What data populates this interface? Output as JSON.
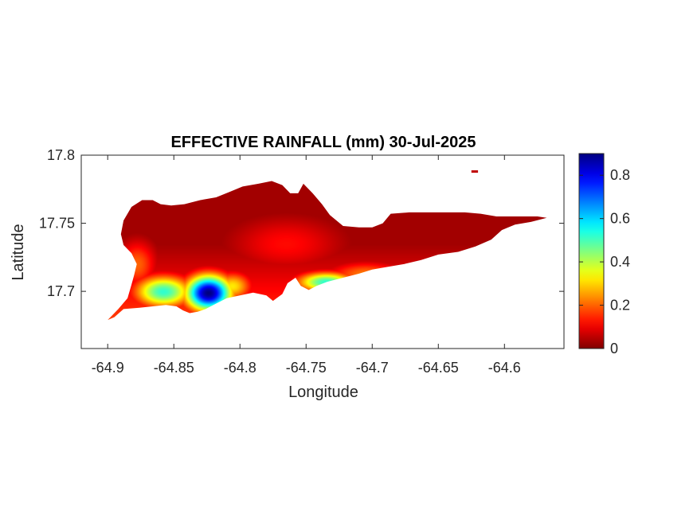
{
  "chart_data": {
    "type": "heatmap",
    "title": "EFFECTIVE RAINFALL (mm) 30-Jul-2025",
    "xlabel": "Longitude",
    "ylabel": "Latitude",
    "xlim": [
      -64.92,
      -64.555
    ],
    "ylim": [
      17.658,
      17.8
    ],
    "x_ticks": [
      -64.9,
      -64.85,
      -64.8,
      -64.75,
      -64.7,
      -64.65,
      -64.6
    ],
    "x_tick_labels": [
      "-64.9",
      "-64.85",
      "-64.8",
      "-64.75",
      "-64.7",
      "-64.65",
      "-64.6"
    ],
    "y_ticks": [
      17.7,
      17.75,
      17.8
    ],
    "y_tick_labels": [
      "17.7",
      "17.75",
      "17.8"
    ],
    "colormap": "jet-reversed",
    "colorbar": {
      "range": [
        0,
        0.9
      ],
      "ticks": [
        0,
        0.2,
        0.4,
        0.6,
        0.8
      ],
      "tick_labels": [
        "0",
        "0.2",
        "0.4",
        "0.6",
        "0.8"
      ],
      "placement": "right"
    },
    "grid": false,
    "island_outline_lonlat": [
      [
        -64.9,
        17.679
      ],
      [
        -64.892,
        17.687
      ],
      [
        -64.885,
        17.695
      ],
      [
        -64.882,
        17.705
      ],
      [
        -64.88,
        17.712
      ],
      [
        -64.878,
        17.72
      ],
      [
        -64.882,
        17.728
      ],
      [
        -64.888,
        17.734
      ],
      [
        -64.89,
        17.742
      ],
      [
        -64.888,
        17.752
      ],
      [
        -64.882,
        17.762
      ],
      [
        -64.874,
        17.767
      ],
      [
        -64.866,
        17.767
      ],
      [
        -64.86,
        17.764
      ],
      [
        -64.852,
        17.763
      ],
      [
        -64.842,
        17.764
      ],
      [
        -64.83,
        17.767
      ],
      [
        -64.818,
        17.769
      ],
      [
        -64.808,
        17.773
      ],
      [
        -64.798,
        17.777
      ],
      [
        -64.786,
        17.779
      ],
      [
        -64.776,
        17.781
      ],
      [
        -64.768,
        17.778
      ],
      [
        -64.762,
        17.772
      ],
      [
        -64.756,
        17.772
      ],
      [
        -64.752,
        17.779
      ],
      [
        -64.745,
        17.772
      ],
      [
        -64.738,
        17.764
      ],
      [
        -64.732,
        17.756
      ],
      [
        -64.722,
        17.748
      ],
      [
        -64.71,
        17.747
      ],
      [
        -64.7,
        17.747
      ],
      [
        -64.692,
        17.75
      ],
      [
        -64.686,
        17.757
      ],
      [
        -64.672,
        17.758
      ],
      [
        -64.658,
        17.758
      ],
      [
        -64.644,
        17.758
      ],
      [
        -64.63,
        17.758
      ],
      [
        -64.618,
        17.757
      ],
      [
        -64.606,
        17.755
      ],
      [
        -64.596,
        17.755
      ],
      [
        -64.586,
        17.755
      ],
      [
        -64.575,
        17.755
      ],
      [
        -64.568,
        17.754
      ],
      [
        -64.58,
        17.751
      ],
      [
        -64.592,
        17.749
      ],
      [
        -64.602,
        17.745
      ],
      [
        -64.61,
        17.738
      ],
      [
        -64.622,
        17.733
      ],
      [
        -64.635,
        17.729
      ],
      [
        -64.65,
        17.727
      ],
      [
        -64.663,
        17.723
      ],
      [
        -64.676,
        17.72
      ],
      [
        -64.688,
        17.718
      ],
      [
        -64.7,
        17.716
      ],
      [
        -64.71,
        17.713
      ],
      [
        -64.722,
        17.71
      ],
      [
        -64.734,
        17.707
      ],
      [
        -64.742,
        17.704
      ],
      [
        -64.748,
        17.701
      ],
      [
        -64.754,
        17.704
      ],
      [
        -64.758,
        17.71
      ],
      [
        -64.764,
        17.706
      ],
      [
        -64.768,
        17.698
      ],
      [
        -64.775,
        17.693
      ],
      [
        -64.78,
        17.697
      ],
      [
        -64.79,
        17.699
      ],
      [
        -64.8,
        17.697
      ],
      [
        -64.81,
        17.695
      ],
      [
        -64.818,
        17.691
      ],
      [
        -64.826,
        17.687
      ],
      [
        -64.832,
        17.685
      ],
      [
        -64.838,
        17.684
      ],
      [
        -64.843,
        17.686
      ],
      [
        -64.848,
        17.689
      ],
      [
        -64.856,
        17.69
      ],
      [
        -64.866,
        17.689
      ],
      [
        -64.876,
        17.688
      ],
      [
        -64.888,
        17.687
      ],
      [
        -64.895,
        17.681
      ]
    ],
    "islet_lonlat": [
      [
        -64.625,
        17.788
      ],
      [
        -64.62,
        17.788
      ]
    ],
    "value_hotspots": [
      {
        "lon": -64.824,
        "lat": 17.699,
        "value": 0.9,
        "sx": 0.012,
        "sy": 0.009
      },
      {
        "lon": -64.858,
        "lat": 17.7,
        "value": 0.52,
        "sx": 0.015,
        "sy": 0.008
      },
      {
        "lon": -64.806,
        "lat": 17.704,
        "value": 0.32,
        "sx": 0.01,
        "sy": 0.007
      },
      {
        "lon": -64.735,
        "lat": 17.707,
        "value": 0.52,
        "sx": 0.015,
        "sy": 0.005
      },
      {
        "lon": -64.705,
        "lat": 17.713,
        "value": 0.22,
        "sx": 0.02,
        "sy": 0.006
      },
      {
        "lon": -64.878,
        "lat": 17.72,
        "value": 0.2,
        "sx": 0.01,
        "sy": 0.012
      },
      {
        "lon": -64.765,
        "lat": 17.735,
        "value": 0.12,
        "sx": 0.03,
        "sy": 0.014
      }
    ]
  }
}
